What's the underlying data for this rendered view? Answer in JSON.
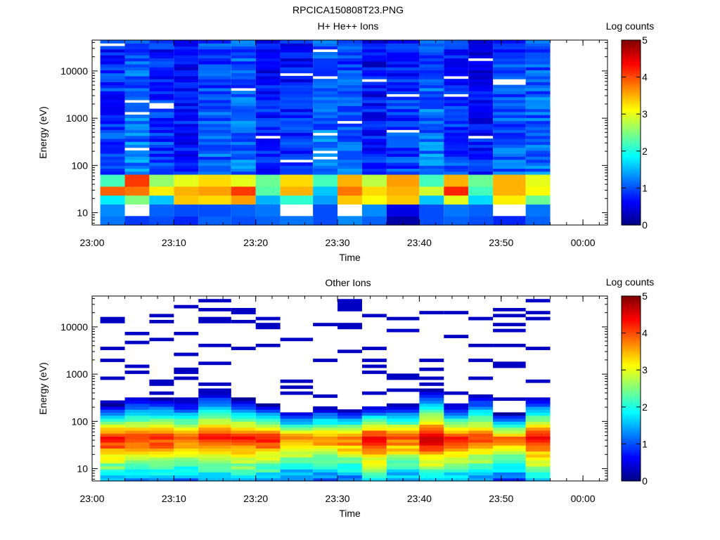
{
  "figure_title": "RPCICA150808T23.PNG",
  "chart_data": [
    {
      "type": "heatmap",
      "title": "H+ He++ Ions",
      "xlabel": "Time",
      "ylabel": "Energy (eV)",
      "x_ticks": [
        "23:00",
        "23:10",
        "23:20",
        "23:30",
        "23:40",
        "23:50",
        "00:00"
      ],
      "y_ticks": [
        "10",
        "100",
        "1000",
        "10000"
      ],
      "y_scale": "log",
      "y_range_eV": [
        5.5,
        45000
      ],
      "x_range": [
        "23:00",
        "00:03"
      ],
      "colorbar": {
        "label": "Log counts",
        "ticks": [
          "0",
          "1",
          "2",
          "3",
          "4",
          "5"
        ],
        "range": [
          0,
          5
        ],
        "colormap": "jet"
      },
      "columns": [
        {
          "start": "23:01",
          "end": "23:04",
          "low_profile": [
            1.2,
            1.3,
            1.8,
            3.9,
            2.2
          ]
        },
        {
          "start": "23:04",
          "end": "23:07",
          "low_profile": [
            0.9,
            0.0,
            2.5,
            3.8,
            4.1
          ]
        },
        {
          "start": "23:07",
          "end": "23:10",
          "low_profile": [
            1.0,
            1.1,
            1.6,
            3.2,
            2.6
          ]
        },
        {
          "start": "23:10",
          "end": "23:13",
          "low_profile": [
            0.8,
            1.0,
            3.4,
            3.5,
            3.0
          ]
        },
        {
          "start": "23:13",
          "end": "23:17",
          "low_profile": [
            1.1,
            1.0,
            3.3,
            3.6,
            3.3
          ]
        },
        {
          "start": "23:17",
          "end": "23:20",
          "low_profile": [
            1.0,
            1.1,
            3.6,
            4.1,
            3.0
          ]
        },
        {
          "start": "23:20",
          "end": "23:23",
          "low_profile": [
            1.1,
            1.2,
            1.5,
            2.3,
            2.4
          ]
        },
        {
          "start": "23:23",
          "end": "23:27",
          "low_profile": [
            1.2,
            0.0,
            2.1,
            3.5,
            3.3
          ]
        },
        {
          "start": "23:27",
          "end": "23:30",
          "low_profile": [
            1.0,
            1.0,
            1.4,
            1.6,
            2.2
          ]
        },
        {
          "start": "23:30",
          "end": "23:33",
          "low_profile": [
            1.3,
            0.0,
            3.4,
            3.8,
            3.5
          ]
        },
        {
          "start": "23:33",
          "end": "23:36",
          "low_profile": [
            1.1,
            1.3,
            3.1,
            3.3,
            2.8
          ]
        },
        {
          "start": "23:36",
          "end": "23:40",
          "low_profile": [
            0.2,
            0.5,
            3.4,
            3.5,
            3.6
          ]
        },
        {
          "start": "23:40",
          "end": "23:43",
          "low_profile": [
            1.0,
            1.0,
            1.6,
            2.9,
            2.2
          ]
        },
        {
          "start": "23:43",
          "end": "23:46",
          "low_profile": [
            1.1,
            1.2,
            3.0,
            4.2,
            3.5
          ]
        },
        {
          "start": "23:46",
          "end": "23:49",
          "low_profile": [
            1.0,
            1.1,
            1.7,
            2.2,
            2.4
          ]
        },
        {
          "start": "23:49",
          "end": "23:53",
          "low_profile": [
            0.8,
            0.0,
            3.2,
            3.5,
            3.5
          ]
        },
        {
          "start": "23:53",
          "end": "23:56",
          "low_profile": [
            1.1,
            1.2,
            2.4,
            3.1,
            3.0
          ]
        }
      ]
    },
    {
      "type": "heatmap",
      "title": "Other Ions",
      "xlabel": "Time",
      "ylabel": "Energy (eV)",
      "x_ticks": [
        "23:00",
        "23:10",
        "23:20",
        "23:30",
        "23:40",
        "23:50",
        "00:00"
      ],
      "y_ticks": [
        "10",
        "100",
        "1000",
        "10000"
      ],
      "y_scale": "log",
      "y_range_eV": [
        5.5,
        45000
      ],
      "x_range": [
        "23:00",
        "00:03"
      ],
      "colorbar": {
        "label": "Log counts",
        "ticks": [
          "0",
          "1",
          "2",
          "3",
          "4",
          "5"
        ],
        "range": [
          0,
          5
        ],
        "colormap": "jet"
      },
      "columns": [
        {
          "start": "23:01",
          "end": "23:04",
          "peak": 4.4,
          "top_eV": 230
        },
        {
          "start": "23:04",
          "end": "23:07",
          "peak": 4.1,
          "top_eV": 320
        },
        {
          "start": "23:07",
          "end": "23:10",
          "peak": 4.3,
          "top_eV": 300
        },
        {
          "start": "23:10",
          "end": "23:13",
          "peak": 4.0,
          "top_eV": 270
        },
        {
          "start": "23:13",
          "end": "23:17",
          "peak": 4.3,
          "top_eV": 450
        },
        {
          "start": "23:17",
          "end": "23:20",
          "peak": 4.4,
          "top_eV": 300
        },
        {
          "start": "23:20",
          "end": "23:23",
          "peak": 4.3,
          "top_eV": 230
        },
        {
          "start": "23:23",
          "end": "23:27",
          "peak": 3.9,
          "top_eV": 150
        },
        {
          "start": "23:27",
          "end": "23:30",
          "peak": 3.8,
          "top_eV": 200
        },
        {
          "start": "23:30",
          "end": "23:33",
          "peak": 4.0,
          "top_eV": 170
        },
        {
          "start": "23:33",
          "end": "23:36",
          "peak": 4.6,
          "top_eV": 220
        },
        {
          "start": "23:36",
          "end": "23:40",
          "peak": 4.1,
          "top_eV": 230
        },
        {
          "start": "23:40",
          "end": "23:43",
          "peak": 4.6,
          "top_eV": 500
        },
        {
          "start": "23:43",
          "end": "23:46",
          "peak": 4.2,
          "top_eV": 230
        },
        {
          "start": "23:46",
          "end": "23:49",
          "peak": 4.1,
          "top_eV": 370
        },
        {
          "start": "23:49",
          "end": "23:53",
          "peak": 3.8,
          "top_eV": 150
        },
        {
          "start": "23:53",
          "end": "23:56",
          "peak": 4.5,
          "top_eV": 320
        }
      ]
    }
  ]
}
